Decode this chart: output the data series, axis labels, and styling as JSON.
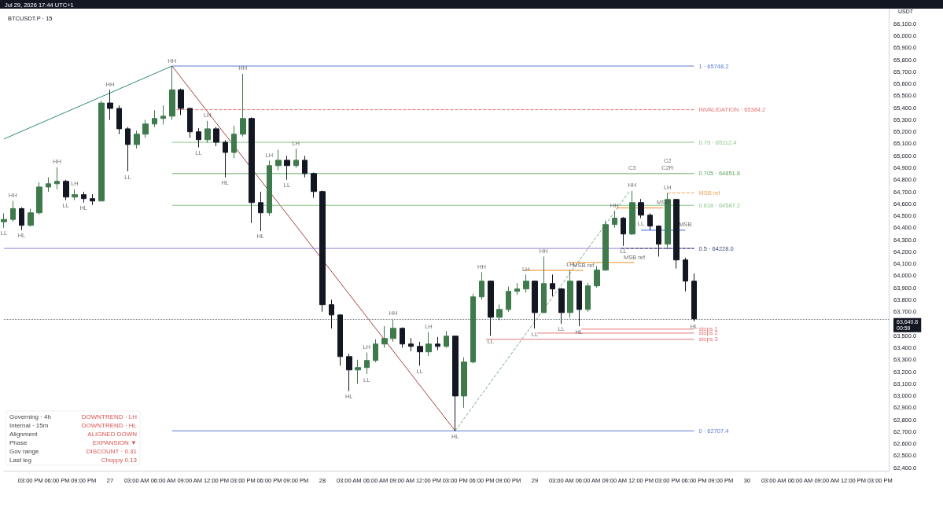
{
  "chart_data": {
    "type": "candlestick",
    "title": "BTCUSDT.P · 15",
    "subtitle": "Jul 29, 2026 17:44 UTC+1",
    "ylabel": "USDT",
    "xlim": [
      "2026-07-26T12:00",
      "2026-07-30T16:00"
    ],
    "xticks": [
      {
        "value": "2026-07-26T15:00",
        "label": "03:00 PM"
      },
      {
        "value": "2026-07-26T18:00",
        "label": "06:00 PM"
      },
      {
        "value": "2026-07-26T21:00",
        "label": "09:00 PM"
      },
      {
        "value": "2026-07-27T00:00",
        "label": "27"
      },
      {
        "value": "2026-07-27T03:00",
        "label": "03:00 AM"
      },
      {
        "value": "2026-07-27T06:00",
        "label": "06:00 AM"
      },
      {
        "value": "2026-07-27T09:00",
        "label": "09:00 AM"
      },
      {
        "value": "2026-07-27T12:00",
        "label": "12:00 PM"
      },
      {
        "value": "2026-07-27T15:00",
        "label": "03:00 PM"
      },
      {
        "value": "2026-07-27T18:00",
        "label": "06:00 PM"
      },
      {
        "value": "2026-07-27T21:00",
        "label": "09:00 PM"
      },
      {
        "value": "2026-07-28T00:00",
        "label": "28"
      },
      {
        "value": "2026-07-28T03:00",
        "label": "03:00 AM"
      },
      {
        "value": "2026-07-28T06:00",
        "label": "06:00 AM"
      },
      {
        "value": "2026-07-28T09:00",
        "label": "09:00 AM"
      },
      {
        "value": "2026-07-28T12:00",
        "label": "12:00 PM"
      },
      {
        "value": "2026-07-28T15:00",
        "label": "03:00 PM"
      },
      {
        "value": "2026-07-28T18:00",
        "label": "06:00 PM"
      },
      {
        "value": "2026-07-28T21:00",
        "label": "09:00 PM"
      },
      {
        "value": "2026-07-29T00:00",
        "label": "29"
      },
      {
        "value": "2026-07-29T03:00",
        "label": "03:00 AM"
      },
      {
        "value": "2026-07-29T06:00",
        "label": "06:00 AM"
      },
      {
        "value": "2026-07-29T09:00",
        "label": "09:00 AM"
      },
      {
        "value": "2026-07-29T12:00",
        "label": "12:00 PM"
      },
      {
        "value": "2026-07-29T15:00",
        "label": "03:00 PM"
      },
      {
        "value": "2026-07-29T18:00",
        "label": "06:00 PM"
      },
      {
        "value": "2026-07-29T21:00",
        "label": "09:00 PM"
      },
      {
        "value": "2026-07-30T00:00",
        "label": "30"
      },
      {
        "value": "2026-07-30T03:00",
        "label": "03:00 AM"
      },
      {
        "value": "2026-07-30T06:00",
        "label": "06:00 AM"
      },
      {
        "value": "2026-07-30T09:00",
        "label": "09:00 AM"
      },
      {
        "value": "2026-07-30T12:00",
        "label": "12:00 PM"
      },
      {
        "value": "2026-07-30T15:00",
        "label": "03:00 PM"
      }
    ],
    "ylim": [
      62375,
      66220
    ],
    "yticks": [
      {
        "value": 62400,
        "label": "62,400.0"
      },
      {
        "value": 62500,
        "label": "62,500.0"
      },
      {
        "value": 62600,
        "label": "62,600.0"
      },
      {
        "value": 62700,
        "label": "62,700.0"
      },
      {
        "value": 62800,
        "label": "62,800.0"
      },
      {
        "value": 62900,
        "label": "62,900.0"
      },
      {
        "value": 63000,
        "label": "63,000.0"
      },
      {
        "value": 63100,
        "label": "63,100.0"
      },
      {
        "value": 63200,
        "label": "63,200.0"
      },
      {
        "value": 63300,
        "label": "63,300.0"
      },
      {
        "value": 63400,
        "label": "63,400.0"
      },
      {
        "value": 63500,
        "label": "63,500.0"
      },
      {
        "value": 63700,
        "label": "63,700.0"
      },
      {
        "value": 63800,
        "label": "63,800.0"
      },
      {
        "value": 63900,
        "label": "63,900.0"
      },
      {
        "value": 64000,
        "label": "64,000.0"
      },
      {
        "value": 64100,
        "label": "64,100.0"
      },
      {
        "value": 64200,
        "label": "64,200.0"
      },
      {
        "value": 64300,
        "label": "64,300.0"
      },
      {
        "value": 64400,
        "label": "64,400.0"
      },
      {
        "value": 64500,
        "label": "64,500.0"
      },
      {
        "value": 64600,
        "label": "64,600.0"
      },
      {
        "value": 64700,
        "label": "64,700.0"
      },
      {
        "value": 64800,
        "label": "64,800.0"
      },
      {
        "value": 64900,
        "label": "64,900.0"
      },
      {
        "value": 65000,
        "label": "65,000.0"
      },
      {
        "value": 65100,
        "label": "65,100.0"
      },
      {
        "value": 65200,
        "label": "65,200.0"
      },
      {
        "value": 65300,
        "label": "65,300.0"
      },
      {
        "value": 65400,
        "label": "65,400.0"
      },
      {
        "value": 65500,
        "label": "65,500.0"
      },
      {
        "value": 65600,
        "label": "65,600.0"
      },
      {
        "value": 65700,
        "label": "65,700.0"
      },
      {
        "value": 65800,
        "label": "65,800.0"
      },
      {
        "value": 65900,
        "label": "65,900.0"
      },
      {
        "value": 66000,
        "label": "66,000.0"
      },
      {
        "value": 66100,
        "label": "66,100.0"
      }
    ],
    "ref_lines": [
      {
        "axis": "y",
        "value": 63640.8,
        "label": "63,640.8\n00:59",
        "color": "#787b86",
        "line_style": "dotted"
      }
    ],
    "series": [
      {
        "colors": [
          "#3f7a4c",
          "#3f7a4c",
          "#131722",
          "#3f7a4c",
          "#3f7a4c",
          "#3f7a4c",
          "#3f7a4c",
          "#131722",
          "#3f7a4c",
          "#131722",
          "#131722",
          "#3f7a4c",
          "#131722",
          "#131722",
          "#131722",
          "#3f7a4c",
          "#3f7a4c",
          "#3f7a4c",
          "#3f7a4c",
          "#3f7a4c",
          "#131722",
          "#131722",
          "#131722",
          "#3f7a4c",
          "#131722",
          "#131722",
          "#3f7a4c",
          "#3f7a4c",
          "#131722",
          "#131722",
          "#3f7a4c",
          "#3f7a4c",
          "#131722",
          "#3f7a4c",
          "#131722",
          "#131722",
          "#131722",
          "#131722",
          "#131722",
          "#131722",
          "#3f7a4c",
          "#3f7a4c",
          "#3f7a4c",
          "#3f7a4c",
          "#3f7a4c",
          "#131722",
          "#131722",
          "#131722",
          "#3f7a4c",
          "#131722",
          "#3f7a4c",
          "#131722",
          "#3f7a4c",
          "#3f7a4c",
          "#3f7a4c",
          "#131722",
          "#3f7a4c",
          "#3f7a4c",
          "#3f7a4c",
          "#3f7a4c",
          "#131722",
          "#3f7a4c",
          "#131722",
          "#131722",
          "#3f7a4c",
          "#131722",
          "#3f7a4c",
          "#3f7a4c",
          "#3f7a4c",
          "#3f7a4c",
          "#131722",
          "#3f7a4c",
          "#131722",
          "#131722",
          "#131722",
          "#3f7a4c",
          "#131722",
          "#131722",
          "#131722"
        ],
        "x": [
          "2026-07-26T12:00",
          "2026-07-26T13:00",
          "2026-07-26T14:00",
          "2026-07-26T15:00",
          "2026-07-26T16:00",
          "2026-07-26T17:00",
          "2026-07-26T18:00",
          "2026-07-26T19:00",
          "2026-07-26T20:00",
          "2026-07-26T21:00",
          "2026-07-26T22:00",
          "2026-07-26T23:00",
          "2026-07-27T00:00",
          "2026-07-27T01:00",
          "2026-07-27T02:00",
          "2026-07-27T03:00",
          "2026-07-27T04:00",
          "2026-07-27T05:00",
          "2026-07-27T06:00",
          "2026-07-27T07:00",
          "2026-07-27T08:00",
          "2026-07-27T09:00",
          "2026-07-27T10:00",
          "2026-07-27T11:00",
          "2026-07-27T12:00",
          "2026-07-27T13:00",
          "2026-07-27T14:00",
          "2026-07-27T15:00",
          "2026-07-27T16:00",
          "2026-07-27T17:00",
          "2026-07-27T18:00",
          "2026-07-27T19:00",
          "2026-07-27T20:00",
          "2026-07-27T21:00",
          "2026-07-27T22:00",
          "2026-07-27T23:00",
          "2026-07-28T00:00",
          "2026-07-28T01:00",
          "2026-07-28T02:00",
          "2026-07-28T03:00",
          "2026-07-28T04:00",
          "2026-07-28T05:00",
          "2026-07-28T06:00",
          "2026-07-28T07:00",
          "2026-07-28T08:00",
          "2026-07-28T09:00",
          "2026-07-28T10:00",
          "2026-07-28T11:00",
          "2026-07-28T12:00",
          "2026-07-28T13:00",
          "2026-07-28T14:00",
          "2026-07-28T15:00",
          "2026-07-28T16:00",
          "2026-07-28T17:00",
          "2026-07-28T18:00",
          "2026-07-28T19:00",
          "2026-07-28T20:00",
          "2026-07-28T21:00",
          "2026-07-28T22:00",
          "2026-07-28T23:00",
          "2026-07-29T00:00",
          "2026-07-29T01:00",
          "2026-07-29T02:00",
          "2026-07-29T03:00",
          "2026-07-29T04:00",
          "2026-07-29T05:00",
          "2026-07-29T06:00",
          "2026-07-29T07:00",
          "2026-07-29T08:00",
          "2026-07-29T09:00",
          "2026-07-29T10:00",
          "2026-07-29T11:00",
          "2026-07-29T12:00",
          "2026-07-29T13:00",
          "2026-07-29T14:00",
          "2026-07-29T15:00",
          "2026-07-29T16:00",
          "2026-07-29T17:00",
          "2026-07-29T18:00"
        ],
        "ohlc": [
          [
            64450,
            64520,
            64400,
            64470
          ],
          [
            64470,
            64623,
            64450,
            64560
          ],
          [
            64560,
            64570,
            64380,
            64420
          ],
          [
            64420,
            64560,
            64410,
            64525
          ],
          [
            64525,
            64780,
            64510,
            64740
          ],
          [
            64740,
            64820,
            64700,
            64767
          ],
          [
            64767,
            64905,
            64720,
            64787
          ],
          [
            64787,
            64800,
            64630,
            64656
          ],
          [
            64656,
            64720,
            64630,
            64676
          ],
          [
            64676,
            64700,
            64610,
            64643
          ],
          [
            64643,
            64680,
            64590,
            64623
          ],
          [
            64623,
            65460,
            64620,
            65440
          ],
          [
            65440,
            65550,
            65300,
            65395
          ],
          [
            65395,
            65420,
            65180,
            65225
          ],
          [
            65225,
            65240,
            64870,
            65094
          ],
          [
            65094,
            65210,
            65060,
            65180
          ],
          [
            65180,
            65300,
            65150,
            65265
          ],
          [
            65265,
            65380,
            65240,
            65311
          ],
          [
            65311,
            65420,
            65260,
            65330
          ],
          [
            65330,
            65748.2,
            65300,
            65550
          ],
          [
            65550,
            65560,
            65340,
            65395
          ],
          [
            65395,
            65400,
            65150,
            65200
          ],
          [
            65200,
            65230,
            65070,
            65134
          ],
          [
            65134,
            65290,
            65110,
            65225
          ],
          [
            65225,
            65240,
            65080,
            65113
          ],
          [
            65113,
            65130,
            64820,
            65028
          ],
          [
            65028,
            65250,
            64980,
            65180
          ],
          [
            65180,
            65683,
            65160,
            65311
          ],
          [
            65311,
            65320,
            64440,
            64610
          ],
          [
            64610,
            64700,
            64373,
            64525
          ],
          [
            64525,
            64960,
            64500,
            64918
          ],
          [
            64918,
            65050,
            64880,
            64963
          ],
          [
            64963,
            65000,
            64800,
            64918
          ],
          [
            64918,
            65060,
            64900,
            64963
          ],
          [
            64963,
            65000,
            64820,
            64852
          ],
          [
            64852,
            64860,
            64650,
            64702
          ],
          [
            64702,
            64710,
            63700,
            63759
          ],
          [
            63759,
            63800,
            63560,
            63673
          ],
          [
            63673,
            63680,
            63250,
            63326
          ],
          [
            63326,
            63350,
            63038,
            63215
          ],
          [
            63215,
            63300,
            63100,
            63235
          ],
          [
            63235,
            63360,
            63180,
            63294
          ],
          [
            63294,
            63470,
            63280,
            63431
          ],
          [
            63431,
            63580,
            63400,
            63477
          ],
          [
            63477,
            63640,
            63450,
            63562
          ],
          [
            63562,
            63570,
            63400,
            63431
          ],
          [
            63431,
            63480,
            63370,
            63411
          ],
          [
            63411,
            63450,
            63250,
            63366
          ],
          [
            63366,
            63530,
            63330,
            63431
          ],
          [
            63431,
            63490,
            63380,
            63411
          ],
          [
            63411,
            63540,
            63400,
            63497
          ],
          [
            63497,
            63500,
            62707.4,
            62998
          ],
          [
            62998,
            63320,
            62900,
            63281
          ],
          [
            63281,
            63850,
            63270,
            63824
          ],
          [
            63824,
            64030,
            63800,
            63955
          ],
          [
            63955,
            63960,
            63500,
            63654
          ],
          [
            63654,
            63760,
            63630,
            63719
          ],
          [
            63719,
            63910,
            63700,
            63870
          ],
          [
            63870,
            63940,
            63840,
            63890
          ],
          [
            63890,
            64010,
            63860,
            63955
          ],
          [
            63955,
            63960,
            63560,
            63693
          ],
          [
            63693,
            64160,
            63690,
            63935
          ],
          [
            63935,
            64010,
            63830,
            63890
          ],
          [
            63890,
            63900,
            63600,
            63693
          ],
          [
            63693,
            64050,
            63650,
            63955
          ],
          [
            63955,
            63960,
            63580,
            63719
          ],
          [
            63719,
            63940,
            63700,
            63916
          ],
          [
            63916,
            64080,
            63900,
            64047
          ],
          [
            64047,
            64460,
            64040,
            64427
          ],
          [
            64427,
            64540,
            64400,
            64480
          ],
          [
            64480,
            64490,
            64250,
            64348
          ],
          [
            64348,
            64708,
            64340,
            64610
          ],
          [
            64610,
            64640,
            64480,
            64505
          ],
          [
            64505,
            64520,
            64380,
            64414
          ],
          [
            64414,
            64420,
            64160,
            64263
          ],
          [
            64263,
            64688,
            64220,
            64636
          ],
          [
            64636,
            64640,
            64060,
            64132
          ],
          [
            64132,
            64150,
            63870,
            63955
          ],
          [
            63955,
            64020,
            63620,
            63640.8
          ]
        ]
      },
      {
        "type": "line",
        "color": "#2e8b6e",
        "x": [
          "2026-07-26T12:00",
          "2026-07-27T07:00"
        ],
        "values": [
          65140,
          65748.2
        ]
      },
      {
        "type": "line",
        "color": "#a0413e",
        "x": [
          "2026-07-27T07:00",
          "2026-07-28T15:00"
        ],
        "values": [
          65748.2,
          62707.4
        ]
      },
      {
        "type": "line",
        "color": "#7aa88a",
        "line_style": "dashed",
        "x": [
          "2026-07-28T15:00",
          "2026-07-29T10:45"
        ],
        "values": [
          62707.4,
          64708
        ]
      },
      {
        "type": "line",
        "name": "1 · 65748.2",
        "color": "#5b7bd5",
        "x": [
          "2026-07-27T07:00",
          "2026-07-29T18:00"
        ],
        "values": [
          65748.2,
          65748.2
        ]
      },
      {
        "type": "line",
        "name": "INVALIDATION · 65384.2",
        "color": "#e57373",
        "line_style": "dashed",
        "x": [
          "2026-07-27T07:30",
          "2026-07-29T18:00"
        ],
        "values": [
          65384.2,
          65384.2
        ]
      },
      {
        "type": "line",
        "name": "0.79 · 65112.4",
        "color": "#8cc68c",
        "x": [
          "2026-07-27T07:00",
          "2026-07-29T18:00"
        ],
        "values": [
          65112.4,
          65112.4
        ]
      },
      {
        "type": "line",
        "name": "0.705 · 64851.8",
        "color": "#5fa85f",
        "x": [
          "2026-07-27T07:00",
          "2026-07-29T18:00"
        ],
        "values": [
          64851.8,
          64851.8
        ]
      },
      {
        "type": "line",
        "name": "MSB ref",
        "color": "#f0a35a",
        "line_style": "dashed",
        "x": [
          "2026-07-29T15:00",
          "2026-07-29T18:00"
        ],
        "values": [
          64690,
          64690
        ]
      },
      {
        "type": "line",
        "name": "0.618 · 64587.2",
        "color": "#8cc68c",
        "x": [
          "2026-07-27T07:00",
          "2026-07-29T18:00"
        ],
        "values": [
          64587.2,
          64587.2
        ]
      },
      {
        "type": "line",
        "color": "#9c7fd0",
        "x": [
          "2026-07-26T12:00",
          "2026-07-29T18:00"
        ],
        "values": [
          64228,
          64228
        ]
      },
      {
        "type": "line",
        "name": "0.5 · 64228.0",
        "color": "#3a3f7a",
        "line_style": "dashed",
        "x": [
          "2026-07-29T09:45",
          "2026-07-29T18:00"
        ],
        "values": [
          64228,
          64228
        ]
      },
      {
        "type": "line",
        "color": "#f08c1e",
        "x": [
          "2026-07-28T22:45",
          "2026-07-29T05:30"
        ],
        "values": [
          64045,
          64045
        ]
      },
      {
        "type": "line",
        "color": "#f08c1e",
        "x": [
          "2026-07-29T03:45",
          "2026-07-29T11:15"
        ],
        "values": [
          64110,
          64110
        ]
      },
      {
        "type": "line",
        "color": "#f08c1e",
        "x": [
          "2026-07-29T09:15",
          "2026-07-29T14:30"
        ],
        "values": [
          64565,
          64565
        ]
      },
      {
        "type": "line",
        "color": "#3b6fd8",
        "x": [
          "2026-07-29T12:00",
          "2026-07-29T17:00"
        ],
        "values": [
          64380,
          64380
        ]
      },
      {
        "type": "line",
        "name": "stops 1",
        "color": "#e57373",
        "x": [
          "2026-07-29T05:15",
          "2026-07-29T18:00"
        ],
        "values": [
          63555,
          63555
        ]
      },
      {
        "type": "line",
        "name": "stops 2",
        "color": "#e57373",
        "x": [
          "2026-07-29T00:15",
          "2026-07-29T18:00"
        ],
        "values": [
          63522,
          63522
        ]
      },
      {
        "type": "line",
        "name": "stops 3",
        "color": "#e57373",
        "x": [
          "2026-07-28T18:30",
          "2026-07-29T18:00"
        ],
        "values": [
          63470,
          63470
        ]
      },
      {
        "type": "line",
        "name": "0 · 62707.4",
        "color": "#5b7bd5",
        "x": [
          "2026-07-27T07:00",
          "2026-07-29T18:00"
        ],
        "values": [
          62707.4,
          62707.4
        ]
      }
    ],
    "annotations": [
      "Governing · 4h",
      "DOWNTREND · LH",
      "Internal · 15m",
      "DOWNTREND · HL",
      "Alignment",
      "ALIGNED DOWN",
      "Phase",
      "EXPANSION ▼",
      "Gov range",
      "DISCOUNT · 0.31",
      "Last leg",
      "Choppy 0.13",
      {
        "text": "LL",
        "x": "2026-07-26T12:00",
        "y": 64400
      },
      {
        "text": "HH",
        "x": "2026-07-26T13:00",
        "y": 64623
      },
      {
        "text": "HL",
        "x": "2026-07-26T14:00",
        "y": 64380
      },
      {
        "text": "HH",
        "x": "2026-07-26T18:00",
        "y": 64905
      },
      {
        "text": "LL",
        "x": "2026-07-26T19:00",
        "y": 64630
      },
      {
        "text": "LH",
        "x": "2026-07-26T20:00",
        "y": 64720
      },
      {
        "text": "HL",
        "x": "2026-07-26T21:00",
        "y": 64610
      },
      {
        "text": "HH",
        "x": "2026-07-27T00:00",
        "y": 65550
      },
      {
        "text": "LL",
        "x": "2026-07-27T02:00",
        "y": 64870
      },
      {
        "text": "HH",
        "x": "2026-07-27T07:00",
        "y": 65748.2
      },
      {
        "text": "LL",
        "x": "2026-07-27T10:00",
        "y": 65070
      },
      {
        "text": "LH",
        "x": "2026-07-27T11:00",
        "y": 65290
      },
      {
        "text": "HL",
        "x": "2026-07-27T13:00",
        "y": 64820
      },
      {
        "text": "HH",
        "x": "2026-07-27T15:00",
        "y": 65683
      },
      {
        "text": "HL",
        "x": "2026-07-27T17:00",
        "y": 64373
      },
      {
        "text": "LH",
        "x": "2026-07-27T18:00",
        "y": 64960
      },
      {
        "text": "LL",
        "x": "2026-07-27T20:00",
        "y": 64800
      },
      {
        "text": "LH",
        "x": "2026-07-27T21:00",
        "y": 65060
      },
      {
        "text": "HL",
        "x": "2026-07-28T03:00",
        "y": 63038
      },
      {
        "text": "LH",
        "x": "2026-07-28T05:00",
        "y": 63360
      },
      {
        "text": "LL",
        "x": "2026-07-28T05:00",
        "y": 63180
      },
      {
        "text": "HH",
        "x": "2026-07-28T08:00",
        "y": 63640
      },
      {
        "text": "LL",
        "x": "2026-07-28T11:00",
        "y": 63250
      },
      {
        "text": "LH",
        "x": "2026-07-28T12:00",
        "y": 63530
      },
      {
        "text": "HL",
        "x": "2026-07-28T15:00",
        "y": 62707.4
      },
      {
        "text": "HH",
        "x": "2026-07-28T18:00",
        "y": 64030
      },
      {
        "text": "LL",
        "x": "2026-07-28T19:00",
        "y": 63500
      },
      {
        "text": "LH",
        "x": "2026-07-28T23:00",
        "y": 64010
      },
      {
        "text": "LL",
        "x": "2026-07-29T00:00",
        "y": 63560
      },
      {
        "text": "HH",
        "x": "2026-07-29T01:00",
        "y": 64160
      },
      {
        "text": "LL",
        "x": "2026-07-29T03:00",
        "y": 63600
      },
      {
        "text": "LH",
        "x": "2026-07-29T04:00",
        "y": 64050
      },
      {
        "text": "HL",
        "x": "2026-07-29T05:00",
        "y": 63580
      },
      {
        "text": "MSB ref",
        "x": "2026-07-29T05:30",
        "y": 64045
      },
      {
        "text": "HH",
        "x": "2026-07-29T09:00",
        "y": 64540
      },
      {
        "text": "LL",
        "x": "2026-07-29T10:00",
        "y": 64250
      },
      {
        "text": "C3",
        "x": "2026-07-29T11:00",
        "y": 64851.8
      },
      {
        "text": "HH",
        "x": "2026-07-29T11:00",
        "y": 64708
      },
      {
        "text": "MSB ref",
        "x": "2026-07-29T11:15",
        "y": 64110
      },
      {
        "text": "LL",
        "x": "2026-07-29T12:00",
        "y": 64480
      },
      {
        "text": "MSB",
        "x": "2026-07-29T14:30",
        "y": 64565
      },
      {
        "text": "C2R",
        "x": "2026-07-29T15:00",
        "y": 64851.8
      },
      {
        "text": "C2",
        "x": "2026-07-29T15:00",
        "y": 64851.8
      },
      {
        "text": "LH",
        "x": "2026-07-29T15:00",
        "y": 64688
      },
      {
        "text": "MSB",
        "x": "2026-07-29T17:00",
        "y": 64380
      },
      {
        "text": "HL",
        "x": "2026-07-29T18:00",
        "y": 63620
      }
    ]
  }
}
